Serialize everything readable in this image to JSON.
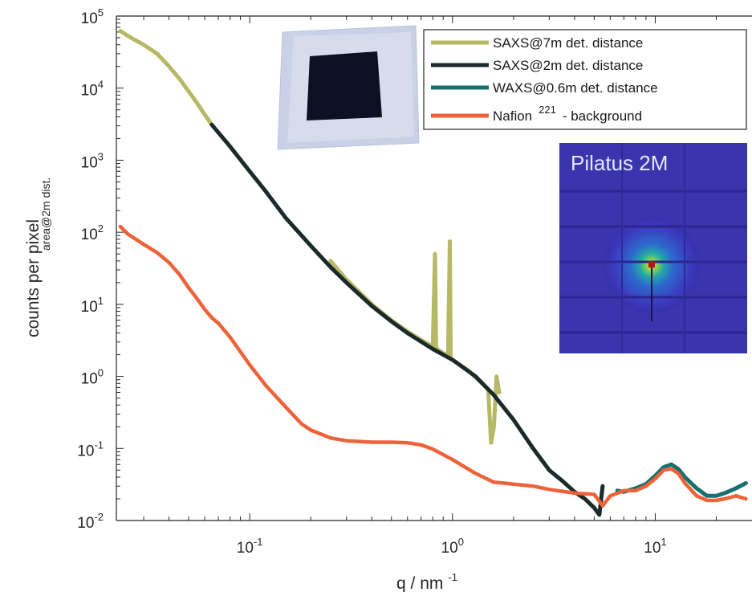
{
  "chart_data": {
    "type": "line",
    "x_scale": "log",
    "y_scale": "log",
    "xlim": [
      0.022,
      30
    ],
    "ylim": [
      0.01,
      100000
    ],
    "x_ticks": [
      0.1,
      1,
      10
    ],
    "y_ticks": [
      0.01,
      0.1,
      1,
      10,
      100,
      1000,
      10000,
      100000
    ],
    "x_tick_labels": [
      {
        "base": "10",
        "exp": "-1"
      },
      {
        "base": "10",
        "exp": "0"
      },
      {
        "base": "10",
        "exp": "1"
      }
    ],
    "y_tick_labels": [
      {
        "base": "10",
        "exp": "-2"
      },
      {
        "base": "10",
        "exp": "-1"
      },
      {
        "base": "10",
        "exp": "0"
      },
      {
        "base": "10",
        "exp": "1"
      },
      {
        "base": "10",
        "exp": "2"
      },
      {
        "base": "10",
        "exp": "3"
      },
      {
        "base": "10",
        "exp": "4"
      },
      {
        "base": "10",
        "exp": "5"
      }
    ],
    "xlabel": {
      "base": "q / nm",
      "exp": "-1"
    },
    "ylabel": "counts per pixel",
    "ylabel_sub": "area@2m dist.",
    "legend_position": "top-right",
    "grid": false,
    "series": [
      {
        "name": "SAXS@7m det. distance",
        "color": "#b6b865",
        "x": [
          0.023,
          0.026,
          0.03,
          0.035,
          0.04,
          0.045,
          0.05,
          0.055,
          0.06,
          0.065
        ],
        "y": [
          62000,
          50000,
          40000,
          30000,
          20000,
          13500,
          9000,
          6200,
          4300,
          3100
        ]
      },
      {
        "name": "SAXS@7m det. distance (overlap)",
        "color": "#b6b865",
        "x": [
          0.25,
          0.3,
          0.4,
          0.5,
          0.6,
          0.7,
          0.8,
          0.82,
          0.83,
          0.84,
          0.86,
          0.9,
          0.95,
          0.97,
          0.98,
          1.0,
          1.2,
          1.4,
          1.5,
          1.55,
          1.6,
          1.65,
          1.7
        ],
        "y": [
          40,
          22,
          10,
          6,
          4.2,
          3.2,
          2.6,
          50,
          2.5,
          2.4,
          2.3,
          2.1,
          1.9,
          75,
          1.8,
          1.7,
          1.2,
          0.8,
          0.65,
          0.12,
          0.2,
          1.0,
          0.6
        ]
      },
      {
        "name": "SAXS@2m det. distance",
        "color": "#1b2b2a",
        "x": [
          0.065,
          0.08,
          0.1,
          0.12,
          0.15,
          0.2,
          0.25,
          0.3,
          0.4,
          0.5,
          0.6,
          0.8,
          1.0,
          1.3,
          1.6,
          2.0,
          2.5,
          3.0,
          3.5,
          4.0,
          4.5,
          5.0,
          5.3,
          5.5
        ],
        "y": [
          3100,
          1550,
          700,
          370,
          160,
          65,
          33,
          20,
          9.5,
          5.8,
          4.0,
          2.4,
          1.7,
          1.0,
          0.55,
          0.25,
          0.1,
          0.05,
          0.035,
          0.025,
          0.02,
          0.015,
          0.012,
          0.03
        ]
      },
      {
        "name": "WAXS@0.6m det. distance",
        "color": "#16706d",
        "x": [
          6.5,
          7,
          8,
          9,
          10,
          11,
          12,
          13,
          14,
          16,
          18,
          20,
          22,
          25,
          28
        ],
        "y": [
          0.026,
          0.025,
          0.028,
          0.032,
          0.042,
          0.055,
          0.06,
          0.052,
          0.04,
          0.028,
          0.022,
          0.022,
          0.024,
          0.028,
          0.033
        ]
      },
      {
        "name": "Nafion 221 - background",
        "color": "#ee623a",
        "x": [
          0.023,
          0.025,
          0.03,
          0.035,
          0.04,
          0.045,
          0.05,
          0.055,
          0.06,
          0.065,
          0.07,
          0.08,
          0.09,
          0.1,
          0.12,
          0.15,
          0.18,
          0.2,
          0.25,
          0.3,
          0.4,
          0.5,
          0.6,
          0.7,
          0.8,
          1.0,
          1.3,
          1.6,
          2.0,
          2.5,
          3.0,
          4.0,
          5.0,
          5.5,
          6.0,
          7.0,
          8.0,
          9.0,
          10,
          11,
          12,
          13,
          14,
          16,
          18,
          20,
          22,
          25,
          28
        ],
        "y": [
          120,
          95,
          68,
          52,
          38,
          26,
          17,
          12,
          8.5,
          6.5,
          5.5,
          3.5,
          2.2,
          1.45,
          0.75,
          0.38,
          0.22,
          0.18,
          0.14,
          0.128,
          0.122,
          0.122,
          0.12,
          0.112,
          0.098,
          0.07,
          0.045,
          0.034,
          0.032,
          0.03,
          0.027,
          0.024,
          0.023,
          0.016,
          0.022,
          0.026,
          0.026,
          0.03,
          0.038,
          0.05,
          0.052,
          0.045,
          0.033,
          0.022,
          0.019,
          0.019,
          0.02,
          0.022,
          0.02
        ]
      }
    ],
    "legend": [
      {
        "label": "SAXS@7m det. distance",
        "color": "#b6b865"
      },
      {
        "label": "SAXS@2m det. distance",
        "color": "#1b2b2a"
      },
      {
        "label": "WAXS@0.6m det. distance",
        "color": "#16706d"
      },
      {
        "label_pre": "Nafion",
        "label_sup": "221",
        "label_post": "- background",
        "color": "#ee623a"
      }
    ],
    "detector_inset_label": "Pilatus 2M"
  }
}
